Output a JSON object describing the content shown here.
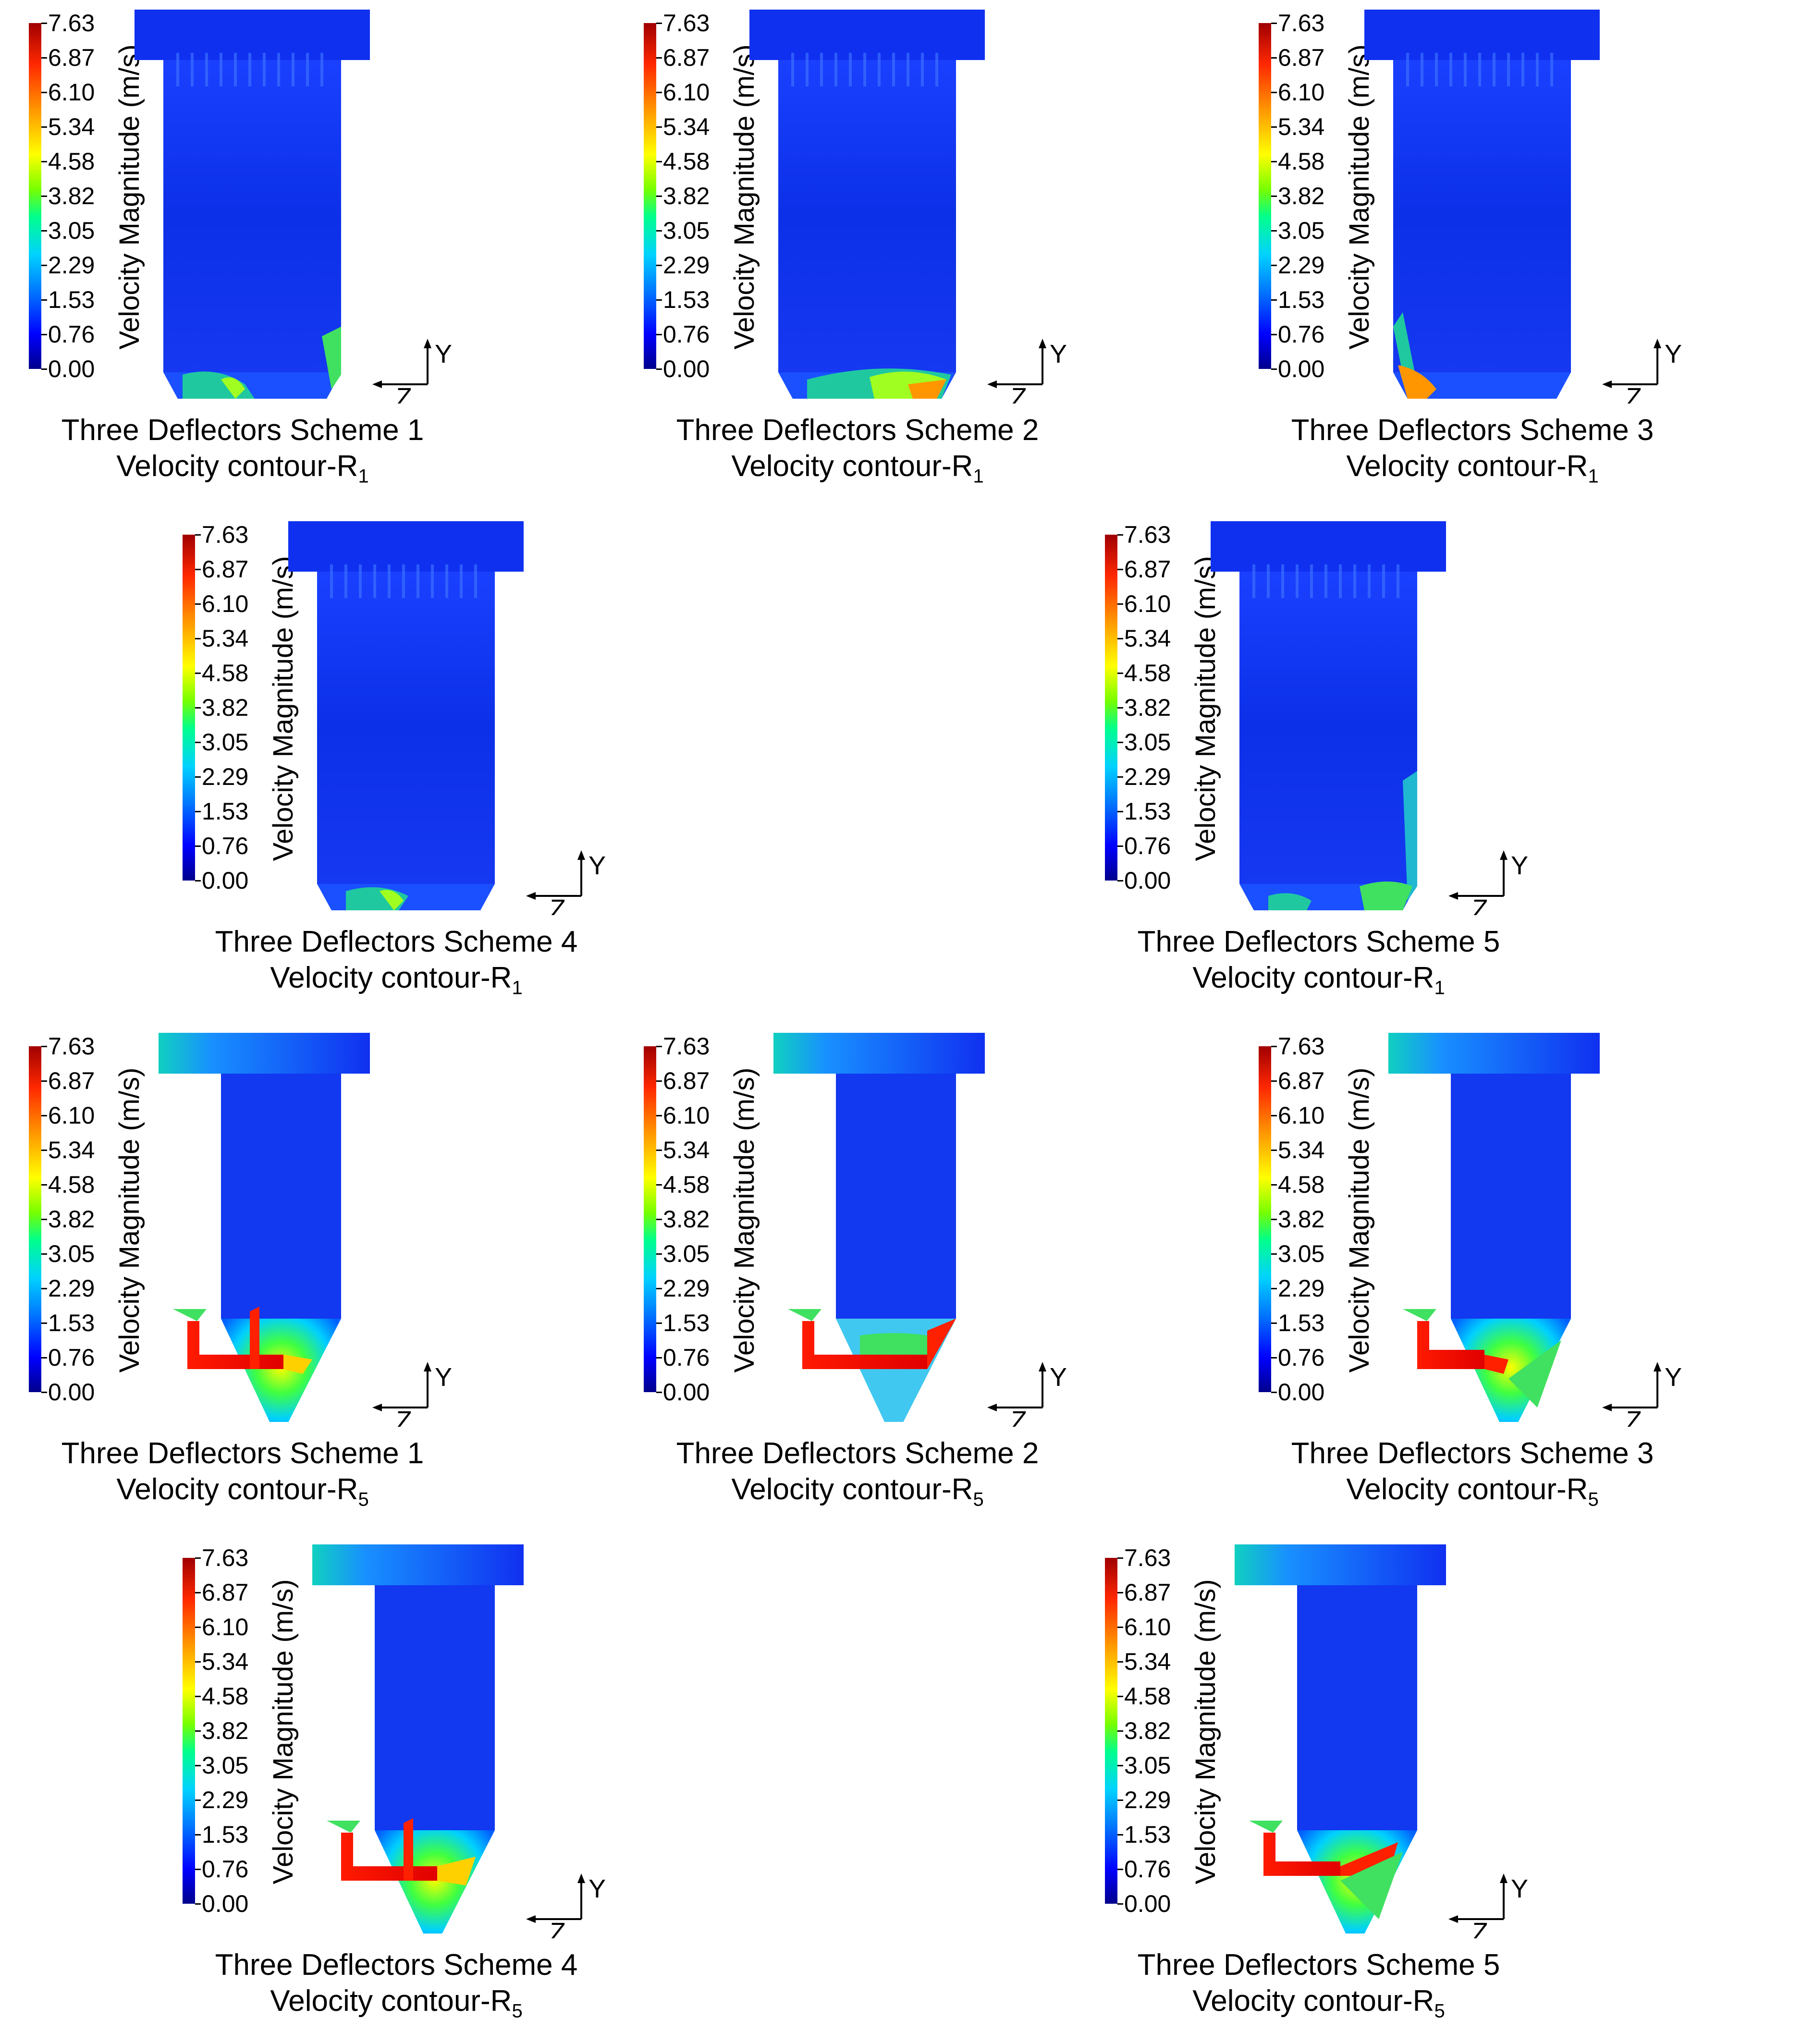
{
  "colorbar": {
    "title": "Velocity Magnitude (m/s)",
    "ticks": [
      "7.63",
      "6.87",
      "6.10",
      "5.34",
      "4.58",
      "3.82",
      "3.05",
      "2.29",
      "1.53",
      "0.76",
      "0.00"
    ],
    "colors": [
      "#00008c",
      "#0000ff",
      "#0073ff",
      "#00d2ff",
      "#00ff8c",
      "#78ff00",
      "#ffff00",
      "#ff9600",
      "#ff2800",
      "#a00000"
    ]
  },
  "axes": {
    "y_label": "Y",
    "z_label": "Z"
  },
  "panels": [
    {
      "scheme": "Three Deflectors Scheme 1",
      "contour_prefix": "Velocity contour-R",
      "contour_sub": "1",
      "section": "R1"
    },
    {
      "scheme": "Three Deflectors Scheme 2",
      "contour_prefix": "Velocity contour-R",
      "contour_sub": "1",
      "section": "R1"
    },
    {
      "scheme": "Three Deflectors Scheme 3",
      "contour_prefix": "Velocity contour-R",
      "contour_sub": "1",
      "section": "R1"
    },
    {
      "scheme": "Three Deflectors Scheme 4",
      "contour_prefix": "Velocity contour-R",
      "contour_sub": "1",
      "section": "R1"
    },
    {
      "scheme": "Three Deflectors Scheme 5",
      "contour_prefix": "Velocity contour-R",
      "contour_sub": "1",
      "section": "R1"
    },
    {
      "scheme": "Three Deflectors Scheme 1",
      "contour_prefix": "Velocity contour-R",
      "contour_sub": "5",
      "section": "R5"
    },
    {
      "scheme": "Three Deflectors Scheme 2",
      "contour_prefix": "Velocity contour-R",
      "contour_sub": "5",
      "section": "R5"
    },
    {
      "scheme": "Three Deflectors Scheme 3",
      "contour_prefix": "Velocity contour-R",
      "contour_sub": "5",
      "section": "R5"
    },
    {
      "scheme": "Three Deflectors Scheme 4",
      "contour_prefix": "Velocity contour-R",
      "contour_sub": "5",
      "section": "R5"
    },
    {
      "scheme": "Three Deflectors Scheme 5",
      "contour_prefix": "Velocity contour-R",
      "contour_sub": "5",
      "section": "R5"
    }
  ]
}
